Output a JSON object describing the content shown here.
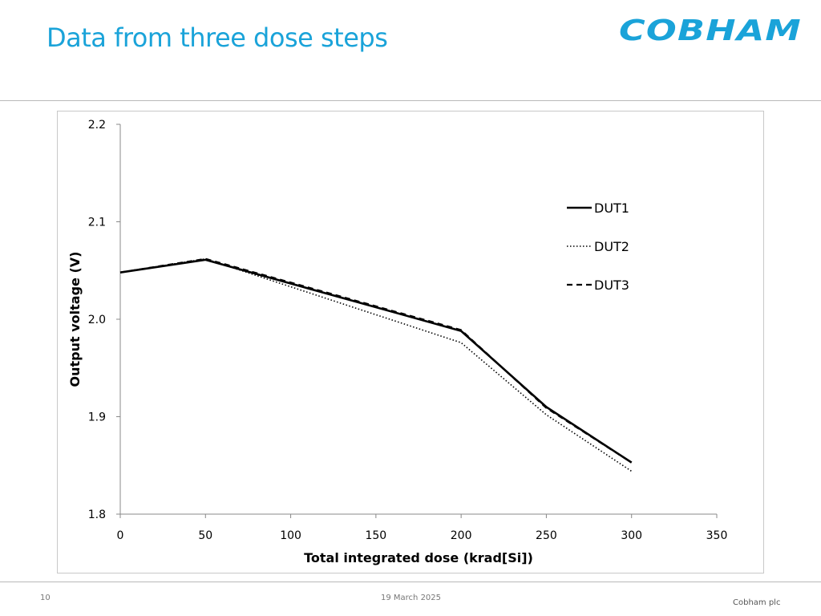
{
  "slide": {
    "title": "Data from three dose steps",
    "logo_text": "COBHAM",
    "page_number": "10",
    "date": "19 March 2025",
    "company": "Cobham plc",
    "accent_color": "#1aa3d9"
  },
  "chart_data": {
    "type": "line",
    "title": "",
    "xlabel": "Total integrated dose (krad[Si])",
    "ylabel": "Output voltage (V)",
    "xlim": [
      0,
      350
    ],
    "ylim": [
      1.8,
      2.2
    ],
    "x_ticks": [
      "0",
      "50",
      "100",
      "150",
      "200",
      "250",
      "300",
      "350"
    ],
    "y_ticks": [
      "1.8",
      "1.9",
      "2.0",
      "2.1",
      "2.2"
    ],
    "grid": false,
    "legend_position": "right",
    "x": [
      0,
      50,
      200,
      250,
      300
    ],
    "series": [
      {
        "name": "DUT1",
        "style": "solid",
        "values": [
          2.048,
          2.061,
          1.988,
          1.91,
          1.853
        ]
      },
      {
        "name": "DUT2",
        "style": "dotted",
        "values": [
          2.048,
          2.062,
          1.976,
          1.902,
          1.844
        ]
      },
      {
        "name": "DUT3",
        "style": "dashed",
        "values": [
          2.048,
          2.062,
          1.989,
          1.909,
          1.853
        ]
      }
    ]
  }
}
